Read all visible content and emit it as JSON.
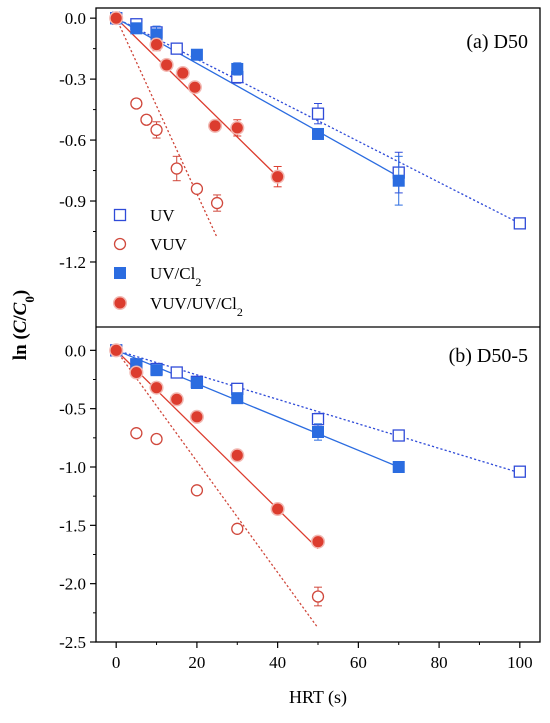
{
  "chart_data": [
    {
      "panel_label": "(a) D50",
      "type": "scatter",
      "xlabel": "HRT (s)",
      "ylabel": "ln (C/C0)",
      "xlim": [
        -5,
        105
      ],
      "ylim": [
        -1.52,
        0.05
      ],
      "xticks": [
        0,
        20,
        40,
        60,
        80,
        100
      ],
      "yticks": [
        0.0,
        -0.3,
        -0.6,
        -0.9,
        -1.2
      ],
      "ytick_labels": [
        "0.0",
        "-0.3",
        "-0.6",
        "-0.9",
        "-1.2"
      ],
      "series": [
        {
          "name": "UV",
          "color": "#2f4bd8",
          "marker": "open-square",
          "fit": "dotted",
          "x": [
            0,
            5,
            10,
            15,
            30,
            50,
            70,
            100
          ],
          "y": [
            0.0,
            -0.03,
            -0.07,
            -0.15,
            -0.29,
            -0.47,
            -0.76,
            -1.01
          ],
          "err": [
            0.03,
            0.02,
            0.03,
            0.02,
            0.03,
            0.05,
            0.1,
            0.01
          ],
          "fit_line": {
            "x0": 0,
            "y0": 0.0,
            "x1": 100,
            "y1": -1.01
          }
        },
        {
          "name": "VUV",
          "color": "#d0483c",
          "marker": "open-circle",
          "fit": "dotted",
          "x": [
            0,
            5,
            7.5,
            10,
            15,
            20,
            25
          ],
          "y": [
            0.0,
            -0.42,
            -0.5,
            -0.55,
            -0.74,
            -0.84,
            -0.91
          ],
          "err": [
            0.02,
            0.02,
            0.02,
            0.04,
            0.06,
            0.02,
            0.04
          ],
          "fit_line": {
            "x0": 0,
            "y0": 0.0,
            "x1": 25,
            "y1": -1.08
          }
        },
        {
          "name": "UV/Cl2",
          "color": "#2b6ce0",
          "marker": "filled-square",
          "fit": "solid",
          "x": [
            0,
            5,
            10,
            20,
            30,
            50,
            70
          ],
          "y": [
            0.0,
            -0.05,
            -0.08,
            -0.18,
            -0.25,
            -0.57,
            -0.8
          ],
          "err": [
            0.01,
            0.02,
            0.04,
            0.02,
            0.03,
            0.02,
            0.12
          ],
          "fit_line": {
            "x0": 0,
            "y0": 0.0,
            "x1": 70,
            "y1": -0.78
          }
        },
        {
          "name": "VUV/UV/Cl2",
          "color": "#dc3c2e",
          "marker": "filled-circle",
          "fit": "solid",
          "x": [
            0,
            10,
            12.5,
            16.5,
            19.5,
            24.5,
            30,
            40
          ],
          "y": [
            0.0,
            -0.13,
            -0.23,
            -0.27,
            -0.34,
            -0.53,
            -0.54,
            -0.78
          ],
          "err": [
            0.02,
            0.03,
            0.02,
            0.02,
            0.02,
            0.02,
            0.04,
            0.05
          ],
          "fit_line": {
            "x0": 0,
            "y0": 0.0,
            "x1": 40,
            "y1": -0.78
          }
        }
      ]
    },
    {
      "panel_label": "(b) D50-5",
      "type": "scatter",
      "xlabel": "HRT (s)",
      "ylabel": "ln (C/C0)",
      "xlim": [
        -5,
        105
      ],
      "ylim": [
        -2.5,
        0.2
      ],
      "xticks": [
        0,
        20,
        40,
        60,
        80,
        100
      ],
      "yticks": [
        0.0,
        -0.5,
        -1.0,
        -1.5,
        -2.0,
        -2.5
      ],
      "ytick_labels": [
        "0.0",
        "-0.5",
        "-1.0",
        "-1.5",
        "-2.0",
        "-2.5"
      ],
      "series": [
        {
          "name": "UV",
          "color": "#2f4bd8",
          "marker": "open-square",
          "fit": "dotted",
          "x": [
            0,
            5,
            10,
            15,
            20,
            30,
            50,
            70,
            100
          ],
          "y": [
            0.0,
            -0.12,
            -0.16,
            -0.19,
            -0.27,
            -0.33,
            -0.59,
            -0.73,
            -1.04
          ],
          "err": [
            0.02,
            0.02,
            0.02,
            0.03,
            0.02,
            0.04,
            0.05,
            0.03,
            0.03
          ],
          "fit_line": {
            "x0": 0,
            "y0": 0.0,
            "x1": 100,
            "y1": -1.05
          }
        },
        {
          "name": "VUV",
          "color": "#d0483c",
          "marker": "open-circle",
          "fit": "dotted",
          "x": [
            0,
            5,
            10,
            20,
            30,
            50
          ],
          "y": [
            0.0,
            -0.71,
            -0.76,
            -1.2,
            -1.53,
            -2.11
          ],
          "err": [
            0.02,
            0.03,
            0.03,
            0.03,
            0.03,
            0.08
          ],
          "fit_line": {
            "x0": 0,
            "y0": 0.0,
            "x1": 50,
            "y1": -2.38
          }
        },
        {
          "name": "UV/Cl2",
          "color": "#2b6ce0",
          "marker": "filled-square",
          "fit": "solid",
          "x": [
            0,
            5,
            10,
            20,
            30,
            50,
            70
          ],
          "y": [
            0.0,
            -0.12,
            -0.17,
            -0.28,
            -0.41,
            -0.7,
            -1.0
          ],
          "err": [
            0.01,
            0.02,
            0.02,
            0.02,
            0.02,
            0.07,
            0.02
          ],
          "fit_line": {
            "x0": 0,
            "y0": 0.0,
            "x1": 70,
            "y1": -1.0
          }
        },
        {
          "name": "VUV/UV/Cl2",
          "color": "#dc3c2e",
          "marker": "filled-circle",
          "fit": "solid",
          "x": [
            0,
            5,
            10,
            15,
            20,
            30,
            40,
            50
          ],
          "y": [
            0.0,
            -0.19,
            -0.32,
            -0.42,
            -0.57,
            -0.9,
            -1.36,
            -1.64
          ],
          "err": [
            0.02,
            0.02,
            0.02,
            0.02,
            0.02,
            0.02,
            0.03,
            0.03
          ],
          "fit_line": {
            "x0": 0,
            "y0": 0.0,
            "x1": 50,
            "y1": -1.7
          }
        }
      ]
    }
  ],
  "legend": {
    "placement": "lower-left of panel (a)",
    "entries": [
      {
        "label": "UV",
        "marker": "open-square",
        "color": "#2f4bd8"
      },
      {
        "label": "VUV",
        "marker": "open-circle",
        "color": "#d0483c"
      },
      {
        "label": "UV/Cl2",
        "marker": "filled-square",
        "color": "#2b6ce0"
      },
      {
        "label": "VUV/UV/Cl2",
        "marker": "filled-circle",
        "color": "#dc3c2e"
      }
    ]
  }
}
